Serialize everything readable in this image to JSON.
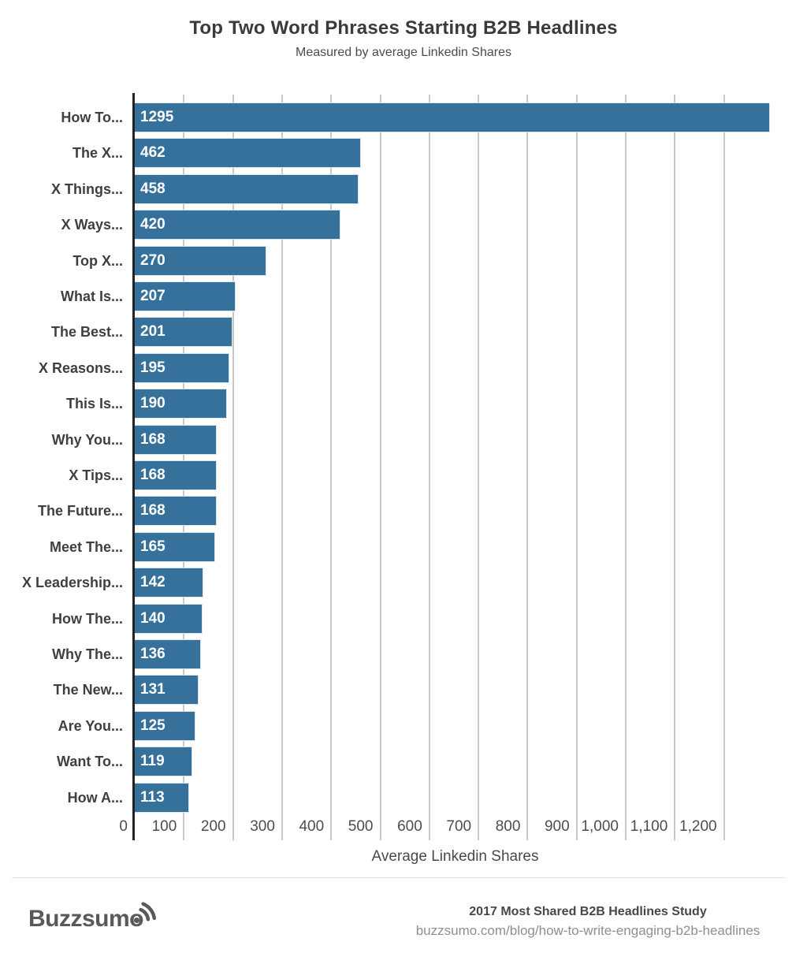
{
  "chart_data": {
    "type": "bar",
    "orientation": "horizontal",
    "title": "Top Two Word Phrases Starting B2B Headlines",
    "subtitle": "Measured by average Linkedin Shares",
    "xlabel": "Average Linkedin Shares",
    "categories": [
      "How To...",
      "The X...",
      "X Things...",
      "X Ways...",
      "Top X...",
      "What Is...",
      "The Best...",
      "X Reasons...",
      "This Is...",
      "Why You...",
      "X Tips...",
      "The Future...",
      "Meet The...",
      "X Leadership...",
      "How The...",
      "Why The...",
      "The New...",
      "Are You...",
      "Want To...",
      "How A..."
    ],
    "values": [
      1295,
      462,
      458,
      420,
      270,
      207,
      201,
      195,
      190,
      168,
      168,
      168,
      165,
      142,
      140,
      136,
      131,
      125,
      119,
      113
    ],
    "xlim": [
      0,
      1308
    ],
    "xticks": [
      {
        "value": 0,
        "label": "0"
      },
      {
        "value": 100,
        "label": "100"
      },
      {
        "value": 200,
        "label": "200"
      },
      {
        "value": 300,
        "label": "300"
      },
      {
        "value": 400,
        "label": "400"
      },
      {
        "value": 500,
        "label": "500"
      },
      {
        "value": 600,
        "label": "600"
      },
      {
        "value": 700,
        "label": "700"
      },
      {
        "value": 800,
        "label": "800"
      },
      {
        "value": 900,
        "label": "900"
      },
      {
        "value": 1000,
        "label": "1,000"
      },
      {
        "value": 1100,
        "label": "1,100"
      },
      {
        "value": 1200,
        "label": "1,200"
      }
    ],
    "bar_color": "#35719b",
    "grid": true,
    "legend": "none"
  },
  "footer": {
    "logo_text": "Buzzsumo",
    "study_title": "2017 Most Shared B2B Headlines Study",
    "source_url": "buzzsumo.com/blog/how-to-write-engaging-b2b-headlines"
  }
}
